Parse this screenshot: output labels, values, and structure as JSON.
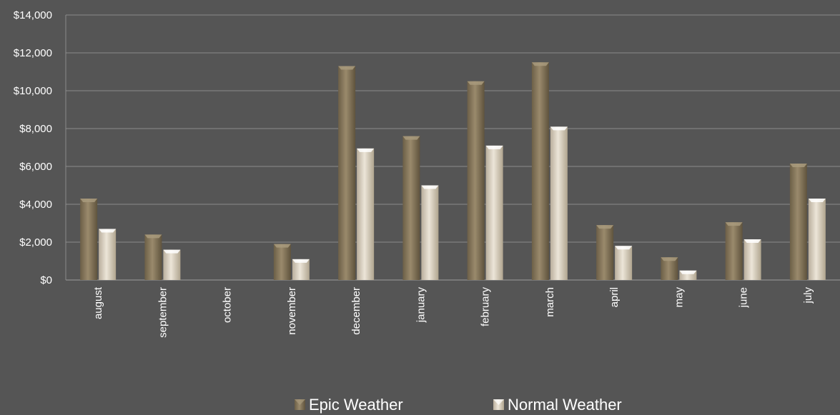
{
  "chart_data": {
    "type": "bar",
    "title": "",
    "xlabel": "",
    "ylabel": "",
    "categories": [
      "august",
      "september",
      "october",
      "november",
      "december",
      "january",
      "february",
      "march",
      "april",
      "may",
      "june",
      "july"
    ],
    "series": [
      {
        "name": "Epic Weather",
        "color": "#8a7a5e",
        "values": [
          4300,
          2400,
          0,
          1900,
          11300,
          7600,
          10500,
          11500,
          2900,
          1200,
          3050,
          6150
        ]
      },
      {
        "name": "Normal Weather",
        "color": "#d8d0c2",
        "values": [
          2700,
          1600,
          0,
          1100,
          6950,
          5000,
          7100,
          8100,
          1800,
          500,
          2150,
          4300
        ]
      }
    ],
    "ylim": [
      0,
      14000
    ],
    "yticks": [
      "$14,000",
      "$12,000",
      "$10,000",
      "$8,000",
      "$6,000",
      "$4,000",
      "$2,000",
      "$0"
    ],
    "ytick_values": [
      14000,
      12000,
      10000,
      8000,
      6000,
      4000,
      2000,
      0
    ],
    "grid": true,
    "legend_position": "bottom",
    "background": "#555555",
    "gridline_color": "#8c8c8c"
  }
}
